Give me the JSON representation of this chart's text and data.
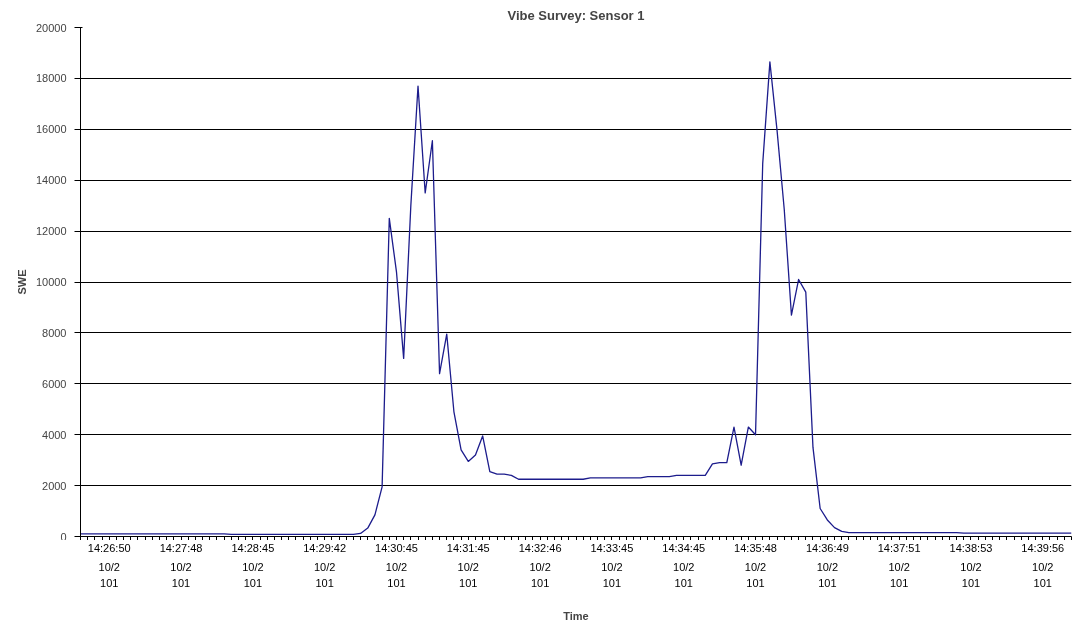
{
  "chart_data": {
    "type": "line",
    "title": "Vibe Survey: Sensor 1",
    "xlabel": "Time",
    "ylabel": "SWE",
    "categories": [
      null,
      null,
      null,
      null,
      "14:26:50\n10/2\n101",
      null,
      null,
      null,
      null,
      null,
      null,
      null,
      null,
      null,
      "14:27:48\n10/2\n101",
      null,
      null,
      null,
      null,
      null,
      null,
      null,
      null,
      null,
      "14:28:45\n10/2\n101",
      null,
      null,
      null,
      null,
      null,
      null,
      null,
      null,
      null,
      "14:29:42\n10/2\n101",
      null,
      null,
      null,
      null,
      null,
      null,
      null,
      null,
      null,
      "14:30:45\n10/2\n101",
      null,
      null,
      null,
      null,
      null,
      null,
      null,
      null,
      null,
      "14:31:45\n10/2\n101",
      null,
      null,
      null,
      null,
      null,
      null,
      null,
      null,
      null,
      "14:32:46\n10/2\n101",
      null,
      null,
      null,
      null,
      null,
      null,
      null,
      null,
      null,
      "14:33:45\n10/2\n101",
      null,
      null,
      null,
      null,
      null,
      null,
      null,
      null,
      null,
      "14:34:45\n10/2\n101",
      null,
      null,
      null,
      null,
      null,
      null,
      null,
      null,
      null,
      "14:35:48\n10/2\n101",
      null,
      null,
      null,
      null,
      null,
      null,
      null,
      null,
      null,
      "14:36:49\n10/2\n101",
      null,
      null,
      null,
      null,
      null,
      null,
      null,
      null,
      null,
      "14:37:51\n10/2\n101",
      null,
      null,
      null,
      null,
      null,
      null,
      null,
      null,
      null,
      "14:38:53\n10/2\n101",
      null,
      null,
      null,
      null,
      null,
      null,
      null,
      null,
      null,
      "14:39:56\n10/2\n101",
      null,
      null,
      null,
      null
    ],
    "series": [
      {
        "color": "#1c1c8c",
        "values": [
          100,
          100,
          100,
          100,
          100,
          100,
          100,
          100,
          100,
          100,
          100,
          100,
          100,
          100,
          100,
          100,
          100,
          100,
          100,
          100,
          100,
          80,
          80,
          80,
          80,
          80,
          80,
          80,
          80,
          80,
          80,
          80,
          80,
          80,
          80,
          80,
          80,
          80,
          80,
          120,
          330,
          850,
          1950,
          12500,
          10400,
          7000,
          13000,
          17700,
          13500,
          15550,
          6400,
          7950,
          4900,
          3400,
          2950,
          3200,
          3950,
          2550,
          2450,
          2450,
          2400,
          2250,
          2250,
          2250,
          2250,
          2250,
          2250,
          2250,
          2250,
          2250,
          2250,
          2300,
          2300,
          2300,
          2300,
          2300,
          2300,
          2300,
          2300,
          2350,
          2350,
          2350,
          2350,
          2400,
          2400,
          2400,
          2400,
          2400,
          2850,
          2900,
          2900,
          4300,
          2800,
          4300,
          4000,
          14650,
          18650,
          15950,
          12850,
          8700,
          10100,
          9600,
          3500,
          1100,
          650,
          350,
          200,
          150,
          150,
          150,
          150,
          150,
          150,
          150,
          150,
          150,
          150,
          150,
          150,
          150,
          150,
          150,
          150,
          130,
          130,
          130,
          130,
          130,
          130,
          130,
          130,
          130,
          130,
          130,
          130,
          130,
          130,
          130,
          130
        ]
      }
    ],
    "ylim": [
      0,
      20000
    ],
    "yticks": [
      0,
      2000,
      4000,
      6000,
      8000,
      10000,
      12000,
      14000,
      16000,
      18000,
      20000
    ],
    "grid": "y",
    "marker": "none",
    "line_style": "solid"
  }
}
